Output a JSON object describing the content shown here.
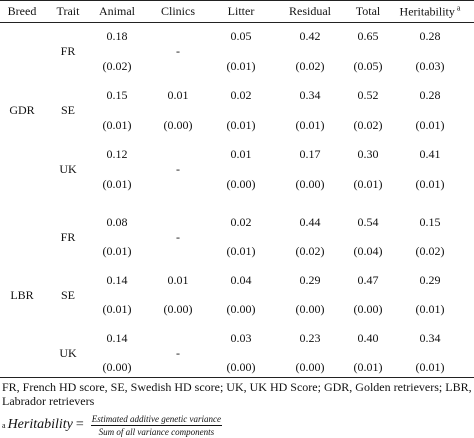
{
  "table": {
    "header": [
      "Breed",
      "Trait",
      "Animal",
      "Clinics",
      "Litter",
      "Residual",
      "Total",
      "Heritability"
    ],
    "header_note": "a",
    "groups": [
      {
        "breed": "GDR",
        "rows": [
          {
            "trait": "FR",
            "cells": [
              [
                "0.18",
                "(0.02)"
              ],
              [
                "-"
              ],
              [
                "0.05",
                "(0.01)"
              ],
              [
                "0.42",
                "(0.02)"
              ],
              [
                "0.65",
                "(0.05)"
              ],
              [
                "0.28",
                "(0.03)"
              ]
            ]
          },
          {
            "trait": "SE",
            "cells": [
              [
                "0.15",
                "(0.01)"
              ],
              [
                "0.01",
                "(0.00)"
              ],
              [
                "0.02",
                "(0.01)"
              ],
              [
                "0.34",
                "(0.01)"
              ],
              [
                "0.52",
                "(0.02)"
              ],
              [
                "0.28",
                "(0.01)"
              ]
            ]
          },
          {
            "trait": "UK",
            "cells": [
              [
                "0.12",
                "(0.01)"
              ],
              [
                "-"
              ],
              [
                "0.01",
                "(0.00)"
              ],
              [
                "0.17",
                "(0.00)"
              ],
              [
                "0.30",
                "(0.01)"
              ],
              [
                "0.41",
                "(0.01)"
              ]
            ]
          }
        ]
      },
      {
        "breed": "LBR",
        "rows": [
          {
            "trait": "FR",
            "cells": [
              [
                "0.08",
                "(0.01)"
              ],
              [
                "-"
              ],
              [
                "0.02",
                "(0.01)"
              ],
              [
                "0.44",
                "(0.02)"
              ],
              [
                "0.54",
                "(0.04)"
              ],
              [
                "0.15",
                "(0.02)"
              ]
            ]
          },
          {
            "trait": "SE",
            "cells": [
              [
                "0.14",
                "(0.01)"
              ],
              [
                "0.01",
                "(0.00)"
              ],
              [
                "0.04",
                "(0.00)"
              ],
              [
                "0.29",
                "(0.00)"
              ],
              [
                "0.47",
                "(0.00)"
              ],
              [
                "0.29",
                "(0.01)"
              ]
            ]
          },
          {
            "trait": "UK",
            "cells": [
              [
                "0.14",
                "(0.00)"
              ],
              [
                "-"
              ],
              [
                "0.03",
                "(0.00)"
              ],
              [
                "0.23",
                "(0.00)"
              ],
              [
                "0.40",
                "(0.01)"
              ],
              [
                "0.34",
                "(0.01)"
              ]
            ]
          }
        ]
      }
    ]
  },
  "footnote": {
    "text": "FR, French HD score, SE, Swedish HD score; UK, UK HD Score; GDR, Golden retrievers; LBR, Labrador retrievers",
    "formula": {
      "note": "a",
      "lhs": "Heritability",
      "eq": "=",
      "numerator": "Estimated additive genetic variance",
      "denominator": "Sum of all variance components"
    }
  }
}
